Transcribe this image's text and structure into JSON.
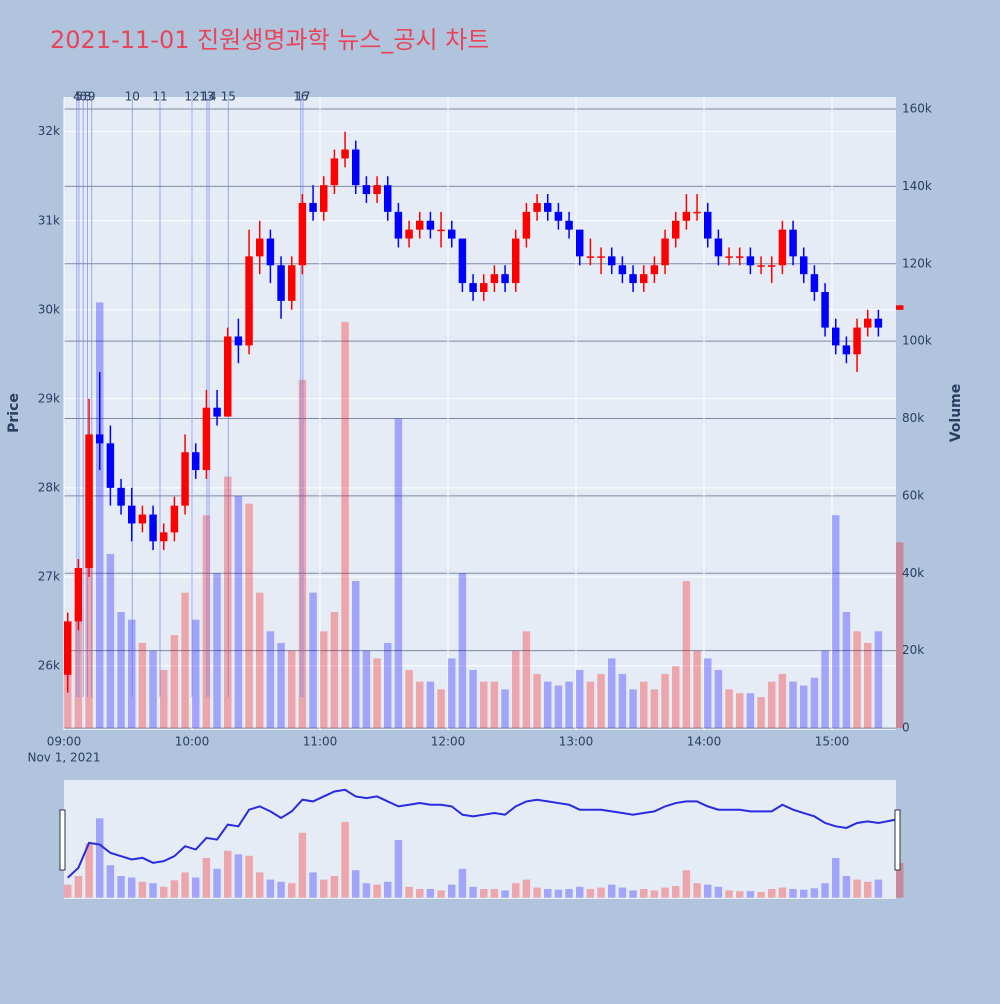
{
  "chart_data": {
    "type": "candlestick",
    "title": "2021-11-01 진원생명과학 뉴스_공시 차트",
    "x": [
      "09:00",
      "09:05",
      "09:10",
      "09:15",
      "09:20",
      "09:25",
      "09:30",
      "09:35",
      "09:40",
      "09:45",
      "09:50",
      "09:55",
      "10:00",
      "10:05",
      "10:10",
      "10:15",
      "10:20",
      "10:25",
      "10:30",
      "10:35",
      "10:40",
      "10:45",
      "10:50",
      "10:55",
      "11:00",
      "11:05",
      "11:10",
      "11:15",
      "11:20",
      "11:25",
      "11:30",
      "11:35",
      "11:40",
      "11:45",
      "11:50",
      "11:55",
      "12:00",
      "12:05",
      "12:10",
      "12:15",
      "12:20",
      "12:25",
      "12:30",
      "12:35",
      "12:40",
      "12:45",
      "12:50",
      "12:55",
      "13:00",
      "13:05",
      "13:10",
      "13:15",
      "13:20",
      "13:25",
      "13:30",
      "13:35",
      "13:40",
      "13:45",
      "13:50",
      "13:55",
      "14:00",
      "14:05",
      "14:10",
      "14:15",
      "14:20",
      "14:25",
      "14:30",
      "14:35",
      "14:40",
      "14:45",
      "14:50",
      "14:55",
      "15:00",
      "15:05",
      "15:10",
      "15:15",
      "15:20",
      "15:30"
    ],
    "open": [
      25900,
      26500,
      27100,
      28600,
      28500,
      28000,
      27800,
      27600,
      27700,
      27400,
      27500,
      27800,
      28400,
      28200,
      28900,
      28800,
      29700,
      29600,
      30600,
      30800,
      30500,
      30100,
      30500,
      31200,
      31100,
      31400,
      31700,
      31800,
      31400,
      31300,
      31400,
      31100,
      30800,
      30900,
      31000,
      30900,
      30900,
      30800,
      30300,
      30200,
      30300,
      30400,
      30300,
      30800,
      31100,
      31200,
      31100,
      31000,
      30900,
      30600,
      30600,
      30600,
      30500,
      30400,
      30300,
      30400,
      30500,
      30800,
      31000,
      31100,
      31100,
      30800,
      30600,
      30600,
      30600,
      30500,
      30500,
      30500,
      30900,
      30600,
      30400,
      30200,
      29800,
      29600,
      29500,
      29800,
      29900,
      30000
    ],
    "high": [
      26600,
      27200,
      29000,
      29300,
      28700,
      28100,
      28000,
      27800,
      27800,
      27600,
      27900,
      28600,
      28500,
      29100,
      29100,
      29800,
      29900,
      30900,
      31000,
      30900,
      30600,
      30600,
      31300,
      31400,
      31500,
      31800,
      32000,
      31900,
      31500,
      31500,
      31500,
      31200,
      31000,
      31100,
      31100,
      31100,
      31000,
      30800,
      30400,
      30400,
      30500,
      30500,
      30900,
      31200,
      31300,
      31300,
      31200,
      31100,
      30900,
      30800,
      30700,
      30700,
      30600,
      30500,
      30500,
      30600,
      30900,
      31100,
      31300,
      31300,
      31200,
      30900,
      30700,
      30700,
      30700,
      30600,
      30600,
      31000,
      31000,
      30700,
      30500,
      30300,
      29900,
      29700,
      29900,
      30000,
      30000,
      30050
    ],
    "low": [
      25700,
      26400,
      27000,
      28200,
      27800,
      27700,
      27400,
      27500,
      27300,
      27300,
      27400,
      27700,
      28100,
      28100,
      28700,
      28800,
      29400,
      29500,
      30400,
      30300,
      29900,
      30000,
      30400,
      31000,
      31000,
      31300,
      31600,
      31300,
      31200,
      31200,
      31000,
      30700,
      30700,
      30800,
      30800,
      30700,
      30700,
      30200,
      30100,
      30100,
      30200,
      30200,
      30200,
      30700,
      31000,
      31000,
      30900,
      30800,
      30500,
      30500,
      30400,
      30400,
      30300,
      30200,
      30200,
      30300,
      30400,
      30700,
      30900,
      31000,
      30700,
      30500,
      30500,
      30500,
      30400,
      30400,
      30300,
      30400,
      30500,
      30300,
      30100,
      29700,
      29500,
      29400,
      29300,
      29700,
      29700,
      30000
    ],
    "close": [
      26500,
      27100,
      28600,
      28500,
      28000,
      27800,
      27600,
      27700,
      27400,
      27500,
      27800,
      28400,
      28200,
      28900,
      28800,
      29700,
      29600,
      30600,
      30800,
      30500,
      30100,
      30500,
      31200,
      31100,
      31400,
      31700,
      31800,
      31400,
      31300,
      31400,
      31100,
      30800,
      30900,
      31000,
      30900,
      30900,
      30800,
      30300,
      30200,
      30300,
      30400,
      30300,
      30800,
      31100,
      31200,
      31100,
      31000,
      30900,
      30600,
      30600,
      30600,
      30500,
      30400,
      30300,
      30400,
      30500,
      30800,
      31000,
      31100,
      31100,
      30800,
      30600,
      30600,
      30600,
      30500,
      30500,
      30500,
      30900,
      30600,
      30400,
      30200,
      29800,
      29600,
      29500,
      29800,
      29900,
      29800,
      30050
    ],
    "volume": [
      18000,
      30000,
      75000,
      110000,
      45000,
      30000,
      28000,
      22000,
      20000,
      15000,
      24000,
      35000,
      28000,
      55000,
      40000,
      65000,
      60000,
      58000,
      35000,
      25000,
      22000,
      20000,
      90000,
      35000,
      25000,
      30000,
      105000,
      38000,
      20000,
      18000,
      22000,
      80000,
      15000,
      12000,
      12000,
      10000,
      18000,
      40000,
      15000,
      12000,
      12000,
      10000,
      20000,
      25000,
      14000,
      12000,
      11000,
      12000,
      15000,
      12000,
      14000,
      18000,
      14000,
      10000,
      12000,
      10000,
      14000,
      16000,
      38000,
      20000,
      18000,
      15000,
      10000,
      9000,
      9000,
      8000,
      12000,
      14000,
      12000,
      11000,
      13000,
      20000,
      55000,
      30000,
      25000,
      22000,
      25000,
      48000
    ],
    "increasing_color": "#ff0000",
    "decreasing_color": "#0000ff",
    "xlim": [
      "09:00",
      "15:30"
    ],
    "xticks": [
      "09:00",
      "10:00",
      "11:00",
      "12:00",
      "13:00",
      "14:00",
      "15:00"
    ],
    "x_date_label": "Nov 1, 2021",
    "ylim": [
      25280,
      32390
    ],
    "yticks": [
      {
        "value": 26000,
        "label": "26k"
      },
      {
        "value": 27000,
        "label": "27k"
      },
      {
        "value": 28000,
        "label": "28k"
      },
      {
        "value": 29000,
        "label": "29k"
      },
      {
        "value": 30000,
        "label": "30k"
      },
      {
        "value": 31000,
        "label": "31k"
      },
      {
        "value": 32000,
        "label": "32k"
      }
    ],
    "y2lim": [
      -500,
      163100
    ],
    "y2ticks": [
      0,
      {
        "value": 20000,
        "label": "20k"
      },
      {
        "value": 40000,
        "label": "40k"
      },
      {
        "value": 60000,
        "label": "60k"
      },
      {
        "value": 80000,
        "label": "80k"
      },
      {
        "value": 100000,
        "label": "100k"
      },
      {
        "value": 120000,
        "label": "120k"
      },
      {
        "value": 140000,
        "label": "140k"
      },
      {
        "value": 160000,
        "label": "160k"
      }
    ],
    "y_label": "Price",
    "y2_label": "Volume",
    "events": [
      {
        "label": "4",
        "x": "09:06"
      },
      {
        "label": "5",
        "x": "09:07"
      },
      {
        "label": "6",
        "x": "09:09"
      },
      {
        "label": "8",
        "x": "09:11"
      },
      {
        "label": "9",
        "x": "09:13"
      },
      {
        "label": "10",
        "x": "09:32"
      },
      {
        "label": "11",
        "x": "09:45"
      },
      {
        "label": "12",
        "x": "10:00"
      },
      {
        "label": "13",
        "x": "10:07"
      },
      {
        "label": "14",
        "x": "10:08"
      },
      {
        "label": "15",
        "x": "10:17"
      },
      {
        "label": "16",
        "x": "10:51"
      },
      {
        "label": "17",
        "x": "10:52"
      }
    ]
  }
}
